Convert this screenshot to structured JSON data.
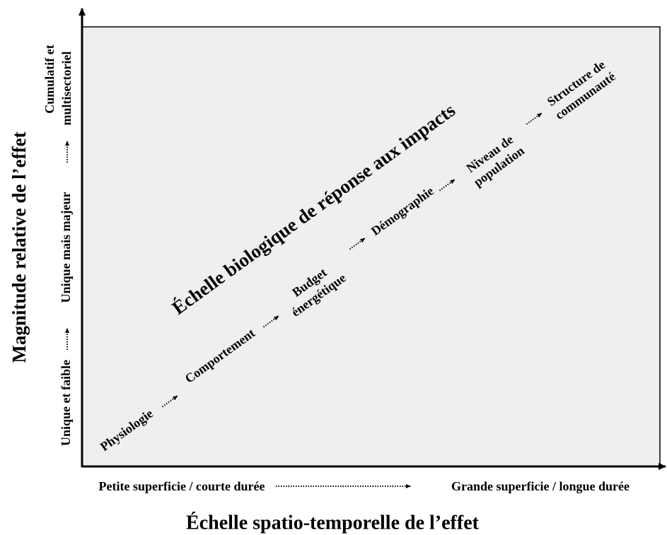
{
  "axes": {
    "y_title": "Magnitude relative de l’effet",
    "x_title": "Échelle spatio-temporelle de l’effet",
    "y_levels": [
      [
        "Unique et faible"
      ],
      [
        "Unique mais majeur"
      ],
      [
        "Cumulatif et",
        "multisectoriel"
      ]
    ],
    "x_levels": [
      "Petite superficie / courte durée",
      "Grande superficie / longue durée"
    ]
  },
  "diagram": {
    "title": "Échelle biologique de réponse aux impacts",
    "stages": [
      [
        "Physiologie"
      ],
      [
        "Comportement"
      ],
      [
        "Budget",
        "énergétique"
      ],
      [
        "Démographie"
      ],
      [
        "Niveau de",
        "population"
      ],
      [
        "Structure de",
        "communauté"
      ]
    ]
  }
}
